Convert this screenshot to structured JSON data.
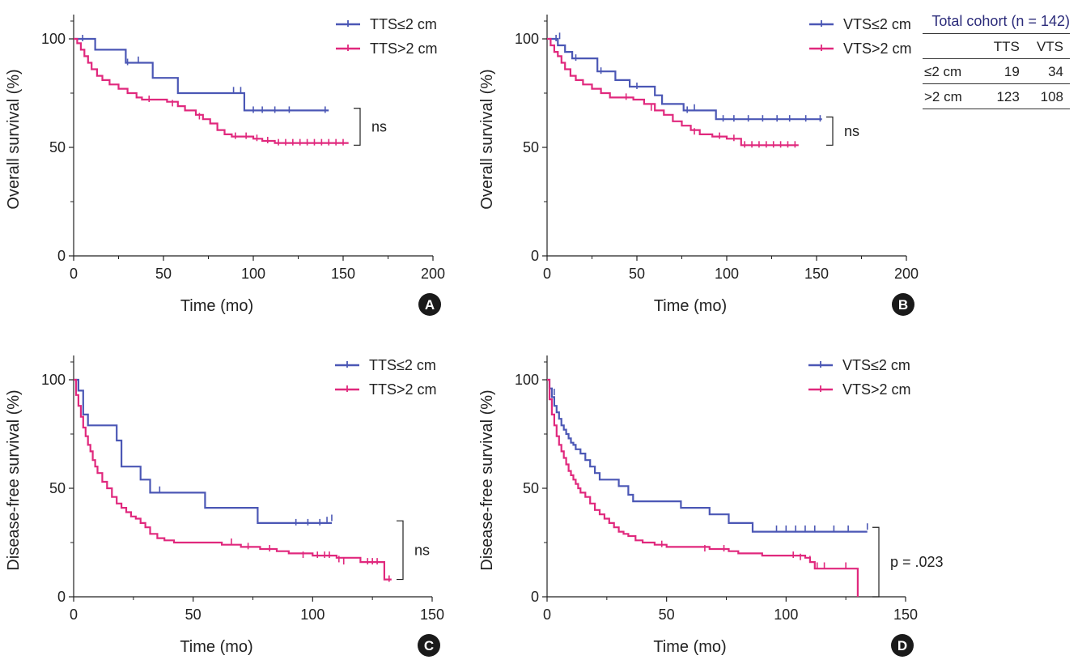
{
  "colors": {
    "blue": "#4b57b5",
    "pink": "#e0287d",
    "axis": "#222222",
    "badge": "#1a1a1a"
  },
  "cohort_table": {
    "title": "Total cohort (n = 142)",
    "headers": [
      "",
      "TTS",
      "VTS"
    ],
    "rows": [
      {
        "label": "≤2 cm",
        "tts": "19",
        "vts": "34"
      },
      {
        "label": ">2 cm",
        "tts": "123",
        "vts": "108"
      }
    ]
  },
  "chart_data": [
    {
      "id": "A",
      "type": "line",
      "step": true,
      "xlabel": "Time (mo)",
      "ylabel": "Overall survival (%)",
      "xlim": [
        0,
        200
      ],
      "ylim": [
        0,
        100
      ],
      "xticks": [
        0,
        50,
        100,
        150,
        200
      ],
      "yticks": [
        0,
        50,
        100
      ],
      "annotation": "ns",
      "bracket_y": [
        68,
        51
      ],
      "series": [
        {
          "name": "TTS≤2 cm",
          "color": "#4b57b5",
          "x": [
            0,
            12,
            29,
            44,
            58,
            95,
            142
          ],
          "y": [
            100,
            95,
            89,
            82,
            75,
            67,
            67
          ],
          "censored": [
            [
              5,
              100
            ],
            [
              30,
              89
            ],
            [
              36,
              90
            ],
            [
              89,
              76
            ],
            [
              93,
              76
            ],
            [
              100,
              67
            ],
            [
              105,
              67
            ],
            [
              112,
              67
            ],
            [
              120,
              67
            ],
            [
              140,
              67
            ]
          ]
        },
        {
          "name": "TTS>2 cm",
          "color": "#e0287d",
          "x": [
            0,
            2,
            4,
            6,
            8,
            10,
            13,
            16,
            20,
            25,
            30,
            35,
            38,
            45,
            52,
            58,
            62,
            68,
            72,
            76,
            80,
            84,
            88,
            94,
            100,
            105,
            112,
            153
          ],
          "y": [
            100,
            98,
            95,
            92,
            89,
            86,
            83,
            81,
            79,
            77,
            75,
            73,
            72,
            72,
            71,
            69,
            67,
            65,
            63,
            61,
            58,
            56,
            55,
            55,
            54,
            53,
            52,
            52
          ],
          "censored": [
            [
              42,
              72
            ],
            [
              55,
              70
            ],
            [
              70,
              64
            ],
            [
              90,
              55
            ],
            [
              96,
              55
            ],
            [
              102,
              54
            ],
            [
              108,
              53
            ],
            [
              114,
              52
            ],
            [
              118,
              52
            ],
            [
              122,
              52
            ],
            [
              126,
              52
            ],
            [
              130,
              52
            ],
            [
              134,
              52
            ],
            [
              138,
              52
            ],
            [
              142,
              52
            ],
            [
              146,
              52
            ],
            [
              150,
              52
            ]
          ]
        }
      ]
    },
    {
      "id": "B",
      "type": "line",
      "step": true,
      "xlabel": "Time (mo)",
      "ylabel": "Overall survival (%)",
      "xlim": [
        0,
        200
      ],
      "ylim": [
        0,
        100
      ],
      "xticks": [
        0,
        50,
        100,
        150,
        200
      ],
      "yticks": [
        0,
        50,
        100
      ],
      "annotation": "ns",
      "bracket_y": [
        64,
        51
      ],
      "series": [
        {
          "name": "VTS≤2 cm",
          "color": "#4b57b5",
          "x": [
            0,
            6,
            10,
            14,
            28,
            38,
            46,
            60,
            64,
            76,
            94,
            153
          ],
          "y": [
            100,
            97,
            94,
            91,
            85,
            81,
            78,
            74,
            70,
            67,
            63,
            63
          ],
          "censored": [
            [
              5,
              100
            ],
            [
              7,
              101
            ],
            [
              16,
              91
            ],
            [
              30,
              85
            ],
            [
              50,
              78
            ],
            [
              78,
              67
            ],
            [
              82,
              68
            ],
            [
              98,
              63
            ],
            [
              104,
              63
            ],
            [
              112,
              63
            ],
            [
              120,
              63
            ],
            [
              128,
              63
            ],
            [
              135,
              63
            ],
            [
              144,
              63
            ],
            [
              152,
              63
            ]
          ]
        },
        {
          "name": "VTS>2 cm",
          "color": "#e0287d",
          "x": [
            0,
            2,
            4,
            6,
            8,
            10,
            13,
            16,
            20,
            25,
            30,
            35,
            40,
            48,
            54,
            60,
            65,
            70,
            75,
            80,
            85,
            92,
            100,
            108,
            140
          ],
          "y": [
            100,
            97,
            94,
            92,
            89,
            86,
            83,
            81,
            79,
            77,
            75,
            73,
            73,
            72,
            70,
            67,
            65,
            62,
            60,
            58,
            56,
            55,
            54,
            51,
            51
          ],
          "censored": [
            [
              44,
              73
            ],
            [
              58,
              68
            ],
            [
              82,
              57
            ],
            [
              96,
              55
            ],
            [
              104,
              54
            ],
            [
              110,
              51
            ],
            [
              114,
              51
            ],
            [
              118,
              51
            ],
            [
              122,
              51
            ],
            [
              126,
              51
            ],
            [
              130,
              51
            ],
            [
              134,
              51
            ],
            [
              138,
              51
            ]
          ]
        }
      ]
    },
    {
      "id": "C",
      "type": "line",
      "step": true,
      "xlabel": "Time (mo)",
      "ylabel": "Disease-free survival (%)",
      "xlim": [
        0,
        150
      ],
      "ylim": [
        0,
        100
      ],
      "xticks": [
        0,
        50,
        100,
        150
      ],
      "yticks": [
        0,
        50,
        100
      ],
      "annotation": "ns",
      "bracket_y": [
        35,
        8
      ],
      "series": [
        {
          "name": "TTS≤2 cm",
          "color": "#4b57b5",
          "x": [
            0,
            2,
            4,
            6,
            16,
            18,
            20,
            28,
            32,
            34,
            55,
            77,
            108
          ],
          "y": [
            100,
            95,
            84,
            79,
            79,
            72,
            60,
            54,
            48,
            48,
            41,
            34,
            34
          ],
          "censored": [
            [
              4,
              88
            ],
            [
              36,
              49
            ],
            [
              93,
              34
            ],
            [
              98,
              34
            ],
            [
              103,
              34
            ],
            [
              106,
              35
            ],
            [
              108,
              36
            ]
          ]
        },
        {
          "name": "TTS>2 cm",
          "color": "#e0287d",
          "x": [
            0,
            1,
            2,
            3,
            4,
            5,
            6,
            7,
            8,
            9,
            10,
            12,
            14,
            16,
            18,
            20,
            22,
            24,
            26,
            28,
            30,
            32,
            35,
            38,
            42,
            48,
            55,
            62,
            70,
            78,
            85,
            90,
            100,
            110,
            120,
            128,
            130,
            133
          ],
          "y": [
            100,
            93,
            88,
            83,
            78,
            74,
            70,
            67,
            63,
            60,
            57,
            53,
            50,
            46,
            43,
            41,
            39,
            37,
            36,
            34,
            32,
            29,
            27,
            26,
            25,
            25,
            25,
            24,
            23,
            22,
            21,
            20,
            19,
            18,
            16,
            16,
            8,
            8
          ],
          "censored": [
            [
              66,
              25
            ],
            [
              73,
              23
            ],
            [
              82,
              22
            ],
            [
              96,
              19
            ],
            [
              102,
              19
            ],
            [
              105,
              19
            ],
            [
              107,
              19
            ],
            [
              111,
              17
            ],
            [
              113,
              16
            ],
            [
              123,
              16
            ],
            [
              125,
              16
            ],
            [
              127,
              16
            ],
            [
              132,
              8
            ]
          ]
        }
      ]
    },
    {
      "id": "D",
      "type": "line",
      "step": true,
      "xlabel": "Time (mo)",
      "ylabel": "Disease-free survival (%)",
      "xlim": [
        0,
        150
      ],
      "ylim": [
        0,
        100
      ],
      "xticks": [
        0,
        50,
        100,
        150
      ],
      "yticks": [
        0,
        50,
        100
      ],
      "annotation": "p = .023",
      "bracket_y": [
        32,
        0
      ],
      "series": [
        {
          "name": "VTS≤2 cm",
          "color": "#4b57b5",
          "x": [
            0,
            1,
            2,
            3,
            4,
            5,
            6,
            7,
            8,
            9,
            10,
            11,
            12,
            14,
            16,
            18,
            20,
            22,
            26,
            30,
            34,
            36,
            46,
            56,
            68,
            76,
            86,
            134
          ],
          "y": [
            100,
            96,
            92,
            88,
            85,
            82,
            79,
            77,
            75,
            73,
            71,
            70,
            68,
            66,
            63,
            60,
            57,
            54,
            54,
            51,
            47,
            44,
            44,
            41,
            38,
            34,
            30,
            30
          ],
          "censored": [
            [
              3,
              94
            ],
            [
              96,
              31
            ],
            [
              100,
              31
            ],
            [
              104,
              31
            ],
            [
              108,
              31
            ],
            [
              112,
              31
            ],
            [
              120,
              31
            ],
            [
              126,
              31
            ],
            [
              134,
              32
            ]
          ]
        },
        {
          "name": "VTS>2 cm",
          "color": "#e0287d",
          "x": [
            0,
            1,
            2,
            3,
            4,
            5,
            6,
            7,
            8,
            9,
            10,
            11,
            12,
            13,
            14,
            16,
            18,
            20,
            22,
            24,
            26,
            28,
            30,
            32,
            34,
            37,
            40,
            45,
            50,
            58,
            68,
            76,
            80,
            90,
            100,
            108,
            110,
            112,
            128,
            130
          ],
          "y": [
            100,
            91,
            84,
            79,
            74,
            70,
            67,
            64,
            61,
            58,
            56,
            54,
            52,
            50,
            48,
            46,
            43,
            40,
            38,
            36,
            34,
            32,
            30,
            29,
            28,
            26,
            25,
            24,
            23,
            23,
            22,
            21,
            20,
            19,
            19,
            18,
            16,
            13,
            13,
            0
          ],
          "censored": [
            [
              48,
              24
            ],
            [
              66,
              22
            ],
            [
              74,
              22
            ],
            [
              103,
              19
            ],
            [
              106,
              18
            ],
            [
              110,
              17
            ],
            [
              113,
              14
            ],
            [
              116,
              14
            ],
            [
              125,
              14
            ]
          ]
        }
      ]
    }
  ]
}
